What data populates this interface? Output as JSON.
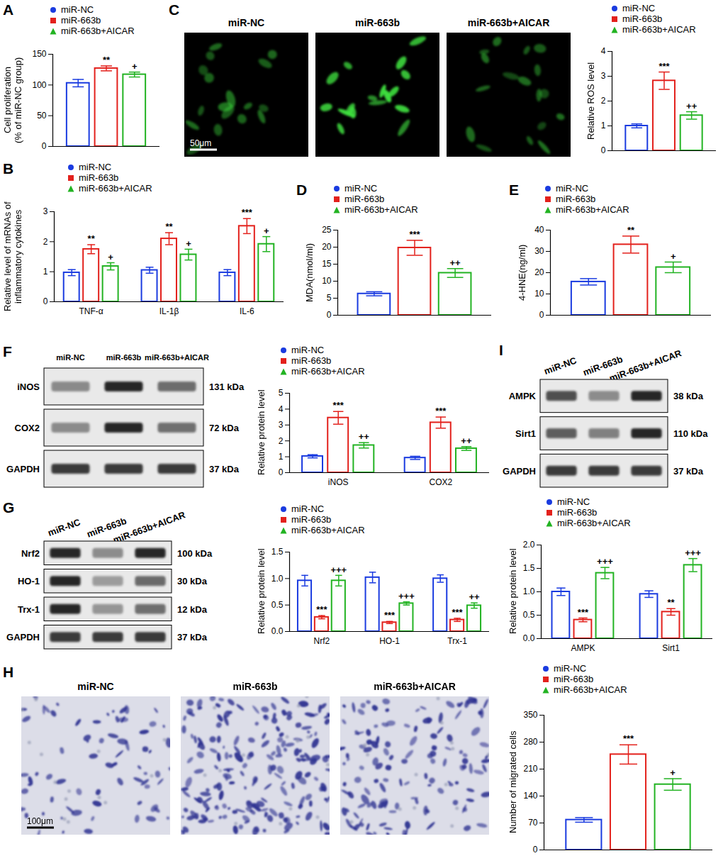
{
  "chart_data": [
    {
      "panel": "A",
      "type": "bar",
      "categories": [
        null
      ],
      "tick_labels": "y",
      "ylabel": "Cell proliferation\n(% of miR-NC group)",
      "ylim": [
        0,
        150
      ],
      "yticks": [
        0,
        50,
        100,
        150
      ],
      "series": [
        {
          "name": "miR-NC",
          "color": "#1a3be0",
          "marker": "circle",
          "values": [
            103
          ],
          "errors": [
            6
          ],
          "annotations": [
            null
          ]
        },
        {
          "name": "miR-663b",
          "color": "#e3211c",
          "marker": "square",
          "values": [
            127
          ],
          "errors": [
            4
          ],
          "annotations": [
            "**"
          ]
        },
        {
          "name": "miR-663b+AICAR",
          "color": "#22b322",
          "marker": "triangle",
          "values": [
            117
          ],
          "errors": [
            4
          ],
          "annotations": [
            "+"
          ]
        }
      ]
    },
    {
      "panel": "C",
      "type": "bar",
      "categories": [
        null
      ],
      "tick_labels": "y",
      "ylabel": "Relative ROS level",
      "ylim": [
        0,
        4
      ],
      "yticks": [
        0,
        1,
        2,
        3,
        4
      ],
      "series": [
        {
          "name": "miR-NC",
          "color": "#1a3be0",
          "marker": "circle",
          "values": [
            1
          ],
          "errors": [
            0.08
          ],
          "annotations": [
            null
          ]
        },
        {
          "name": "miR-663b",
          "color": "#e3211c",
          "marker": "square",
          "values": [
            2.82
          ],
          "errors": [
            0.35
          ],
          "annotations": [
            "***"
          ]
        },
        {
          "name": "miR-663b+AICAR",
          "color": "#22b322",
          "marker": "triangle",
          "values": [
            1.42
          ],
          "errors": [
            0.15
          ],
          "annotations": [
            "++"
          ]
        }
      ]
    },
    {
      "panel": "B",
      "type": "bar",
      "categories": [
        "TNF-α",
        "IL-1β",
        "IL-6"
      ],
      "ylabel": "Relative level of mRNAs of\ninflammatory cytokines",
      "ylim": [
        0,
        3
      ],
      "yticks": [
        0,
        1,
        2,
        3
      ],
      "series": [
        {
          "name": "miR-NC",
          "color": "#1a3be0",
          "marker": "circle",
          "values": [
            0.97,
            1.05,
            0.97
          ],
          "errors": [
            0.1,
            0.1,
            0.1
          ],
          "annotations": [
            null,
            null,
            null
          ]
        },
        {
          "name": "miR-663b",
          "color": "#e3211c",
          "marker": "square",
          "values": [
            1.75,
            2.1,
            2.52
          ],
          "errors": [
            0.15,
            0.2,
            0.25
          ],
          "annotations": [
            "**",
            "**",
            "***"
          ]
        },
        {
          "name": "miR-663b+AICAR",
          "color": "#22b322",
          "marker": "triangle",
          "values": [
            1.18,
            1.57,
            1.92
          ],
          "errors": [
            0.12,
            0.18,
            0.25
          ],
          "annotations": [
            "+",
            "+",
            "+"
          ]
        }
      ]
    },
    {
      "panel": "D",
      "type": "bar",
      "categories": [
        null
      ],
      "tick_labels": "y",
      "ylabel": "MDA(nmol/ml)",
      "ylim": [
        0,
        25
      ],
      "yticks": [
        0,
        5,
        10,
        15,
        20,
        25
      ],
      "series": [
        {
          "name": "miR-NC",
          "color": "#1a3be0",
          "marker": "circle",
          "values": [
            6.3
          ],
          "errors": [
            0.6
          ],
          "annotations": [
            null
          ]
        },
        {
          "name": "miR-663b",
          "color": "#e3211c",
          "marker": "square",
          "values": [
            19.8
          ],
          "errors": [
            2.2
          ],
          "annotations": [
            "***"
          ]
        },
        {
          "name": "miR-663b+AICAR",
          "color": "#22b322",
          "marker": "triangle",
          "values": [
            12.4
          ],
          "errors": [
            1.3
          ],
          "annotations": [
            "++"
          ]
        }
      ]
    },
    {
      "panel": "E",
      "type": "bar",
      "categories": [
        null
      ],
      "tick_labels": "y",
      "ylabel": "4-HNE(ng/ml)",
      "ylim": [
        0,
        40
      ],
      "yticks": [
        0,
        10,
        20,
        30,
        40
      ],
      "series": [
        {
          "name": "miR-NC",
          "color": "#1a3be0",
          "marker": "circle",
          "values": [
            15.7
          ],
          "errors": [
            1.5
          ],
          "annotations": [
            null
          ]
        },
        {
          "name": "miR-663b",
          "color": "#e3211c",
          "marker": "square",
          "values": [
            33.2
          ],
          "errors": [
            4
          ],
          "annotations": [
            "**"
          ]
        },
        {
          "name": "miR-663b+AICAR",
          "color": "#22b322",
          "marker": "triangle",
          "values": [
            22.5
          ],
          "errors": [
            2.5
          ],
          "annotations": [
            "+"
          ]
        }
      ]
    },
    {
      "panel": "F",
      "type": "bar",
      "categories": [
        "iNOS",
        "COX2"
      ],
      "ylabel": "Relative protein level",
      "ylim": [
        0,
        5
      ],
      "yticks": [
        0,
        1,
        2,
        3,
        4,
        5
      ],
      "series": [
        {
          "name": "miR-NC",
          "color": "#1a3be0",
          "marker": "circle",
          "values": [
            1.03,
            0.93
          ],
          "errors": [
            0.1,
            0.1
          ],
          "annotations": [
            null,
            null
          ]
        },
        {
          "name": "miR-663b",
          "color": "#e3211c",
          "marker": "square",
          "values": [
            3.45,
            3.15
          ],
          "errors": [
            0.4,
            0.35
          ],
          "annotations": [
            "***",
            "***"
          ]
        },
        {
          "name": "miR-663b+AICAR",
          "color": "#22b322",
          "marker": "triangle",
          "values": [
            1.72,
            1.52
          ],
          "errors": [
            0.17,
            0.12
          ],
          "annotations": [
            "++",
            "++"
          ]
        }
      ]
    },
    {
      "panel": "G",
      "type": "bar",
      "categories": [
        "Nrf2",
        "HO-1",
        "Trx-1"
      ],
      "ylabel": "Relative protein level",
      "ylim": [
        0,
        1.5
      ],
      "yticks": [
        {
          "value": 0,
          "label": "0.0"
        },
        {
          "value": 0.5,
          "label": "0.5"
        },
        {
          "value": 1,
          "label": "1.0"
        },
        {
          "value": 1.5,
          "label": "1.5"
        }
      ],
      "series": [
        {
          "name": "miR-NC",
          "color": "#1a3be0",
          "marker": "circle",
          "values": [
            0.96,
            1.02,
            1
          ],
          "errors": [
            0.1,
            0.1,
            0.07
          ],
          "annotations": [
            null,
            null,
            null
          ]
        },
        {
          "name": "miR-663b",
          "color": "#e3211c",
          "marker": "square",
          "values": [
            0.27,
            0.17,
            0.22
          ],
          "errors": [
            0.03,
            0.02,
            0.03
          ],
          "annotations": [
            "***",
            "***",
            "***"
          ]
        },
        {
          "name": "miR-663b+AICAR",
          "color": "#22b322",
          "marker": "triangle",
          "values": [
            0.96,
            0.53,
            0.49
          ],
          "errors": [
            0.1,
            0.03,
            0.05
          ],
          "annotations": [
            "+++",
            "+++",
            "++"
          ]
        }
      ]
    },
    {
      "panel": "I",
      "type": "bar",
      "categories": [
        "AMPK",
        "Sirt1"
      ],
      "ylabel": "Relative protein level",
      "ylim": [
        0,
        2
      ],
      "yticks": [
        {
          "value": 0,
          "label": "0.0"
        },
        {
          "value": 0.5,
          "label": "0.5"
        },
        {
          "value": 1,
          "label": "1.0"
        },
        {
          "value": 1.5,
          "label": "1.5"
        },
        {
          "value": 2,
          "label": "2.0"
        }
      ],
      "series": [
        {
          "name": "miR-NC",
          "color": "#1a3be0",
          "marker": "circle",
          "values": [
            1,
            0.95
          ],
          "errors": [
            0.08,
            0.07
          ],
          "annotations": [
            null,
            null
          ]
        },
        {
          "name": "miR-663b",
          "color": "#e3211c",
          "marker": "square",
          "values": [
            0.4,
            0.57
          ],
          "errors": [
            0.04,
            0.07
          ],
          "annotations": [
            "***",
            "**"
          ]
        },
        {
          "name": "miR-663b+AICAR",
          "color": "#22b322",
          "marker": "triangle",
          "values": [
            1.4,
            1.57
          ],
          "errors": [
            0.12,
            0.14
          ],
          "annotations": [
            "+++",
            "+++"
          ]
        }
      ]
    },
    {
      "panel": "H",
      "type": "bar",
      "categories": [
        null
      ],
      "tick_labels": "y",
      "ylabel": "Number of migrated cells",
      "ylim": [
        0,
        350
      ],
      "yticks": [
        0,
        70,
        140,
        210,
        280,
        350
      ],
      "series": [
        {
          "name": "miR-NC",
          "color": "#1a3be0",
          "marker": "circle",
          "values": [
            78
          ],
          "errors": [
            6
          ],
          "annotations": [
            null
          ]
        },
        {
          "name": "miR-663b",
          "color": "#e3211c",
          "marker": "square",
          "values": [
            248
          ],
          "errors": [
            25
          ],
          "annotations": [
            "***"
          ]
        },
        {
          "name": "miR-663b+AICAR",
          "color": "#22b322",
          "marker": "triangle",
          "values": [
            170
          ],
          "errors": [
            15
          ],
          "annotations": [
            "+"
          ]
        }
      ]
    }
  ],
  "images": [
    {
      "panel": "C",
      "labels": [
        "miR-NC",
        "miR-663b",
        "miR-663b+AICAR"
      ],
      "scale_bar": "50μm"
    },
    {
      "panel": "H",
      "labels": [
        "miR-NC",
        "miR-663b",
        "miR-663b+AICAR"
      ],
      "scale_bar": "100μm"
    }
  ],
  "blots": [
    {
      "panel": "F",
      "lanes": [
        "miR-NC",
        "miR-663b",
        "miR-663b+AICAR"
      ],
      "rows": [
        {
          "name": "iNOS",
          "size": "131 kDa"
        },
        {
          "name": "COX2",
          "size": "72 kDa"
        },
        {
          "name": "GAPDH",
          "size": "37 kDa"
        }
      ]
    },
    {
      "panel": "G",
      "lanes": [
        "miR-NC",
        "miR-663b",
        "miR-663b+AICAR"
      ],
      "rows": [
        {
          "name": "Nrf2",
          "size": "100 kDa"
        },
        {
          "name": "HO-1",
          "size": "30 kDa"
        },
        {
          "name": "Trx-1",
          "size": "12 kDa"
        },
        {
          "name": "GAPDH",
          "size": "37 kDa"
        }
      ]
    },
    {
      "panel": "I",
      "lanes": [
        "miR-NC",
        "miR-663b",
        "miR-663b+AICAR"
      ],
      "rows": [
        {
          "name": "AMPK",
          "size": "38 kDa"
        },
        {
          "name": "Sirt1",
          "size": "110 kDa"
        },
        {
          "name": "GAPDH",
          "size": "37 kDa"
        }
      ]
    }
  ]
}
